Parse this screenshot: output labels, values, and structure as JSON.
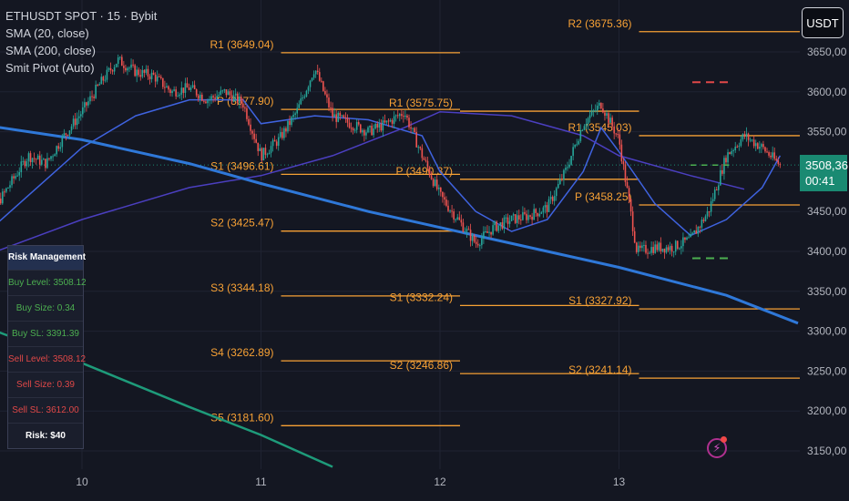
{
  "legend": {
    "symbol": "ETHUSDT SPOT · 15 · Bybit",
    "sma20": "SMA (20, close)",
    "sma200": "SMA (200, close)",
    "pivot": "Smit Pivot (Auto)"
  },
  "currency_button": "USDT",
  "last_price": {
    "value": "3508,36",
    "countdown": "00:41"
  },
  "risk_panel": {
    "title": "Risk Management",
    "buy_level": "Buy Level: 3508.12",
    "buy_size": "Buy Size: 0.34",
    "buy_sl": "Buy SL: 3391.39",
    "sell_level": "Sell Level: 3508.12",
    "sell_size": "Sell Size: 0.39",
    "sell_sl": "Sell SL: 3612.00",
    "risk": "Risk: $40"
  },
  "chart_data": {
    "type": "candlestick",
    "symbol": "ETHUSDT SPOT · 15 · Bybit",
    "x_ticks": [
      "10",
      "11",
      "12",
      "13"
    ],
    "y_ticks": [
      "3150,00",
      "3200,00",
      "3250,00",
      "3300,00",
      "3350,00",
      "3400,00",
      "3450,00",
      "3500,00",
      "3550,00",
      "3600,00",
      "3650,00"
    ],
    "ylim": [
      3130,
      3700
    ],
    "price_path": [
      [
        9.4,
        3440
      ],
      [
        9.5,
        3450
      ],
      [
        9.6,
        3485
      ],
      [
        9.7,
        3520
      ],
      [
        9.8,
        3510
      ],
      [
        9.9,
        3545
      ],
      [
        10.0,
        3575
      ],
      [
        10.1,
        3610
      ],
      [
        10.2,
        3640
      ],
      [
        10.3,
        3625
      ],
      [
        10.4,
        3620
      ],
      [
        10.5,
        3600
      ],
      [
        10.6,
        3605
      ],
      [
        10.7,
        3590
      ],
      [
        10.8,
        3600
      ],
      [
        10.9,
        3585
      ],
      [
        11.0,
        3520
      ],
      [
        11.1,
        3540
      ],
      [
        11.2,
        3575
      ],
      [
        11.3,
        3630
      ],
      [
        11.4,
        3570
      ],
      [
        11.5,
        3560
      ],
      [
        11.6,
        3550
      ],
      [
        11.7,
        3560
      ],
      [
        11.8,
        3575
      ],
      [
        11.9,
        3520
      ],
      [
        12.0,
        3470
      ],
      [
        12.1,
        3440
      ],
      [
        12.2,
        3410
      ],
      [
        12.3,
        3430
      ],
      [
        12.4,
        3440
      ],
      [
        12.5,
        3445
      ],
      [
        12.6,
        3455
      ],
      [
        12.7,
        3500
      ],
      [
        12.8,
        3560
      ],
      [
        12.9,
        3585
      ],
      [
        13.0,
        3540
      ],
      [
        13.1,
        3400
      ],
      [
        13.2,
        3405
      ],
      [
        13.3,
        3405
      ],
      [
        13.4,
        3415
      ],
      [
        13.5,
        3450
      ],
      [
        13.6,
        3520
      ],
      [
        13.7,
        3545
      ],
      [
        13.8,
        3530
      ],
      [
        13.9,
        3508
      ]
    ],
    "series": [
      {
        "name": "SMA (20, close)",
        "color": "#3f63e0",
        "points": [
          [
            9.4,
            3410
          ],
          [
            9.7,
            3470
          ],
          [
            10.0,
            3530
          ],
          [
            10.3,
            3570
          ],
          [
            10.6,
            3590
          ],
          [
            10.9,
            3590
          ],
          [
            11.0,
            3560
          ],
          [
            11.3,
            3570
          ],
          [
            11.6,
            3565
          ],
          [
            11.9,
            3545
          ],
          [
            12.0,
            3500
          ],
          [
            12.2,
            3450
          ],
          [
            12.4,
            3425
          ],
          [
            12.6,
            3440
          ],
          [
            12.8,
            3500
          ],
          [
            12.9,
            3555
          ],
          [
            13.0,
            3525
          ],
          [
            13.2,
            3460
          ],
          [
            13.4,
            3420
          ],
          [
            13.6,
            3440
          ],
          [
            13.8,
            3480
          ],
          [
            13.9,
            3520
          ]
        ]
      },
      {
        "name": "SMA (200, close)",
        "color": "#4b3fc0",
        "points": [
          [
            9.4,
            3390
          ],
          [
            10.0,
            3440
          ],
          [
            10.6,
            3480
          ],
          [
            11.0,
            3495
          ],
          [
            11.4,
            3520
          ],
          [
            11.8,
            3555
          ],
          [
            12.0,
            3575
          ],
          [
            12.4,
            3570
          ],
          [
            12.8,
            3545
          ],
          [
            13.0,
            3520
          ],
          [
            13.4,
            3495
          ],
          [
            13.7,
            3478
          ]
        ]
      },
      {
        "name": "",
        "color": "#2f78d8",
        "points": [
          [
            9.4,
            3560
          ],
          [
            10.0,
            3540
          ],
          [
            10.6,
            3510
          ],
          [
            11.0,
            3485
          ],
          [
            11.6,
            3450
          ],
          [
            12.0,
            3430
          ],
          [
            12.6,
            3400
          ],
          [
            13.0,
            3380
          ],
          [
            13.6,
            3345
          ],
          [
            14.0,
            3310
          ]
        ]
      },
      {
        "name": "",
        "color": "#1e9b7a",
        "points": [
          [
            9.4,
            3310
          ],
          [
            10.0,
            3260
          ],
          [
            10.6,
            3205
          ],
          [
            11.0,
            3170
          ],
          [
            11.4,
            3130
          ]
        ]
      }
    ],
    "pivot_levels": [
      {
        "label": "R1 (3649.04)",
        "value": 3649.04,
        "from": 11.0,
        "to": 12.0
      },
      {
        "label": "P (3577.90)",
        "value": 3577.9,
        "from": 11.0,
        "to": 12.0
      },
      {
        "label": "S1 (3496.61)",
        "value": 3496.61,
        "from": 11.0,
        "to": 12.0
      },
      {
        "label": "S2 (3425.47)",
        "value": 3425.47,
        "from": 11.0,
        "to": 12.0
      },
      {
        "label": "S3 (3344.18)",
        "value": 3344.18,
        "from": 11.0,
        "to": 12.0
      },
      {
        "label": "S4 (3262.89)",
        "value": 3262.89,
        "from": 11.0,
        "to": 12.0
      },
      {
        "label": "S5 (3181.60)",
        "value": 3181.6,
        "from": 11.0,
        "to": 12.0
      },
      {
        "label": "R1 (3575.75)",
        "value": 3575.75,
        "from": 12.0,
        "to": 13.0
      },
      {
        "label": "P (3490.37)",
        "value": 3490.37,
        "from": 12.0,
        "to": 13.0
      },
      {
        "label": "S1 (3332.24)",
        "value": 3332.24,
        "from": 12.0,
        "to": 13.0
      },
      {
        "label": "S2 (3246.86)",
        "value": 3246.86,
        "from": 12.0,
        "to": 13.0
      },
      {
        "label": "R2 (3675.36)",
        "value": 3675.36,
        "from": 13.0,
        "to": 14.0
      },
      {
        "label": "R1 (3545.03)",
        "value": 3545.03,
        "from": 13.0,
        "to": 14.0
      },
      {
        "label": "P (3458.25)",
        "value": 3458.25,
        "from": 13.0,
        "to": 14.0
      },
      {
        "label": "S1 (3327.92)",
        "value": 3327.92,
        "from": 13.0,
        "to": 14.0
      },
      {
        "label": "S2 (3241.14)",
        "value": 3241.14,
        "from": 13.0,
        "to": 14.0
      }
    ],
    "sell_sl_level": 3612.0,
    "buy_sl_level": 3391.39,
    "last_price": 3508.36,
    "colors": {
      "background": "#141722",
      "up": "#26a69a",
      "down": "#ef5350",
      "pivot": "#f7a135",
      "sell_marker": "#e04848",
      "buy_marker": "#4caf50",
      "axis_text": "#b2b5be"
    }
  }
}
